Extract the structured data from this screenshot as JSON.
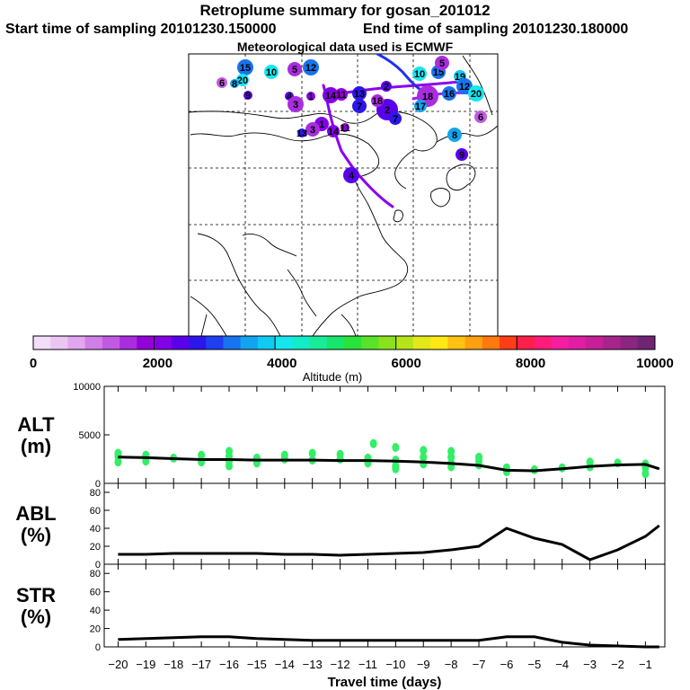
{
  "header": {
    "title": "Retroplume summary for gosan_201012",
    "start": "Start time of sampling 20101230.150000",
    "end": "End time of sampling 20101230.180000",
    "met": "Meteorological data used is ECMWF"
  },
  "colors": {
    "coast": "#000000",
    "grid": "#000000",
    "line_main": "#000000",
    "alt_points": "#33ee66",
    "colorbar": [
      "#f3ddf7",
      "#ecc6f3",
      "#e0a6ee",
      "#d17fe8",
      "#c15ae2",
      "#a92ddf",
      "#9400d8",
      "#8400e6",
      "#5a00ea",
      "#2c16ea",
      "#1f3ff0",
      "#1873f0",
      "#12a4f0",
      "#0fcbf2",
      "#17e6f0",
      "#12ecc8",
      "#19eb99",
      "#18e66a",
      "#29e33a",
      "#5ae22b",
      "#8be21c",
      "#b5e41a",
      "#e3e919",
      "#ffe814",
      "#ffc211",
      "#ffa010",
      "#ff7a0e",
      "#ff3d17",
      "#ff1f4a",
      "#ff1c78",
      "#f51ea1",
      "#e01da4",
      "#c61f98",
      "#a8248c",
      "#8b2580",
      "#6f2574"
    ]
  },
  "map": {
    "clusters": [
      {
        "label": "15",
        "colorLevel": 3100
      },
      {
        "label": "10",
        "colorLevel": 4000
      },
      {
        "label": "5",
        "colorLevel": 1400
      },
      {
        "label": "12",
        "colorLevel": 3200
      },
      {
        "label": "20",
        "colorLevel": 4100
      },
      {
        "label": "6",
        "colorLevel": 1300
      },
      {
        "label": "8",
        "colorLevel": 3600
      },
      {
        "label": "9",
        "colorLevel": 2300
      },
      {
        "label": "4",
        "colorLevel": 2300
      },
      {
        "label": "1",
        "colorLevel": 2000
      },
      {
        "label": "3",
        "colorLevel": 1500
      },
      {
        "label": "14",
        "colorLevel": 2100
      },
      {
        "label": "11",
        "colorLevel": 1800
      },
      {
        "label": "13",
        "colorLevel": 2600
      },
      {
        "label": "2",
        "colorLevel": 2400
      },
      {
        "label": "7",
        "colorLevel": 2600
      },
      {
        "label": "18",
        "colorLevel": 1500
      },
      {
        "label": "16",
        "colorLevel": 3100
      },
      {
        "label": "17",
        "colorLevel": 3600
      },
      {
        "label": "19",
        "colorLevel": 3800
      }
    ]
  },
  "colorbar": {
    "title": "Altitude (m)",
    "labels": [
      "0",
      "2000",
      "4000",
      "6000",
      "8000",
      "10000"
    ],
    "range": [
      0,
      10000
    ]
  },
  "chart_data": [
    {
      "type": "line",
      "name": "ALT",
      "ylabel": "ALT\n(m)",
      "ylabel_lines": [
        "ALT",
        "(m)"
      ],
      "ylim": [
        0,
        10000
      ],
      "yticks": [
        "10000",
        "5000",
        "0"
      ],
      "x": [
        -20,
        -19,
        -18,
        -17,
        -16,
        -15,
        -14,
        -13,
        -12,
        -11,
        -10,
        -9,
        -8,
        -7,
        -6,
        -5,
        -4,
        -3,
        -2,
        -1,
        -0.5
      ],
      "values": [
        2700,
        2650,
        2550,
        2450,
        2450,
        2400,
        2400,
        2400,
        2350,
        2350,
        2300,
        2200,
        2050,
        1850,
        1350,
        1300,
        1500,
        1750,
        1900,
        1950,
        1500
      ],
      "scatter": [
        [
          -20,
          2800
        ],
        [
          -20,
          2200
        ],
        [
          -20,
          3100
        ],
        [
          -19,
          2900
        ],
        [
          -19,
          2300
        ],
        [
          -18,
          2600
        ],
        [
          -17,
          2200
        ],
        [
          -17,
          2900
        ],
        [
          -16,
          2300
        ],
        [
          -16,
          2800
        ],
        [
          -16,
          3300
        ],
        [
          -16,
          1800
        ],
        [
          -15,
          2600
        ],
        [
          -15,
          2100
        ],
        [
          -14,
          2500
        ],
        [
          -14,
          2900
        ],
        [
          -13,
          2400
        ],
        [
          -13,
          3100
        ],
        [
          -12,
          2500
        ],
        [
          -12,
          3000
        ],
        [
          -11,
          2600
        ],
        [
          -11,
          2100
        ],
        [
          -10.8,
          4100
        ],
        [
          -10,
          1800
        ],
        [
          -10,
          2400
        ],
        [
          -10,
          3700
        ],
        [
          -10,
          1500
        ],
        [
          -9,
          2000
        ],
        [
          -9,
          2700
        ],
        [
          -9,
          3400
        ],
        [
          -8,
          2100
        ],
        [
          -8,
          2700
        ],
        [
          -8,
          1700
        ],
        [
          -8,
          3300
        ],
        [
          -7,
          2700
        ],
        [
          -7,
          1900
        ],
        [
          -7,
          2300
        ],
        [
          -6,
          1200
        ],
        [
          -6,
          1600
        ],
        [
          -5,
          1400
        ],
        [
          -4,
          1600
        ],
        [
          -3,
          1700
        ],
        [
          -3,
          2200
        ],
        [
          -2,
          2100
        ],
        [
          -1,
          1600
        ],
        [
          -1,
          1000
        ],
        [
          -1,
          2000
        ]
      ]
    },
    {
      "type": "line",
      "name": "ABL",
      "ylabel": "ABL\n(%)",
      "ylabel_lines": [
        "ABL",
        "(%)"
      ],
      "ylim": [
        0,
        90
      ],
      "yticks": [
        "80",
        "60",
        "40",
        "20",
        "0"
      ],
      "x": [
        -20,
        -19,
        -18,
        -17,
        -16,
        -15,
        -14,
        -13,
        -12,
        -11,
        -10,
        -9,
        -8,
        -7,
        -6,
        -5,
        -4,
        -3,
        -2,
        -1,
        -0.5
      ],
      "values": [
        11,
        11,
        12,
        12,
        12,
        12,
        11,
        11,
        10,
        11,
        12,
        13,
        16,
        20,
        40,
        29,
        22,
        5,
        16,
        31,
        43
      ]
    },
    {
      "type": "line",
      "name": "STR",
      "ylabel": "STR\n(%)",
      "ylabel_lines": [
        "STR",
        "(%)"
      ],
      "ylim": [
        0,
        90
      ],
      "yticks": [
        "80",
        "60",
        "40",
        "20",
        "0"
      ],
      "x": [
        -20,
        -19,
        -18,
        -17,
        -16,
        -15,
        -14,
        -13,
        -12,
        -11,
        -10,
        -9,
        -8,
        -7,
        -6,
        -5,
        -4,
        -3,
        -2,
        -1,
        -0.5
      ],
      "values": [
        8,
        9,
        10,
        11,
        11,
        9,
        8,
        7,
        7,
        7,
        7,
        7,
        7,
        7,
        11,
        11,
        5,
        2,
        1,
        0,
        0
      ],
      "xlabel": "Travel time (days)",
      "xticks": [
        "-20",
        "-19",
        "-18",
        "-17",
        "-16",
        "-15",
        "-14",
        "-13",
        "-12",
        "-11",
        "-10",
        "-9",
        "-8",
        "-7",
        "-6",
        "-5",
        "-4",
        "-3",
        "-2",
        "-1"
      ]
    }
  ]
}
